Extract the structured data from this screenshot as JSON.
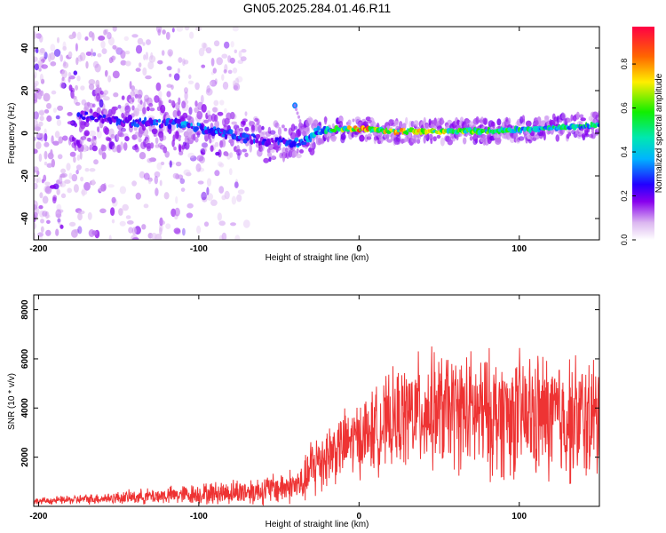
{
  "title": "GN05.2025.284.01.46.R11",
  "chart_data": [
    {
      "type": "heatmap",
      "xlabel": "Height of straight line (km)",
      "ylabel": "Frequency (Hz)",
      "xlim": [
        -203,
        150
      ],
      "ylim": [
        -50,
        50
      ],
      "xticks": [
        -200,
        -100,
        0,
        100
      ],
      "xtick_labels": [
        "-200",
        "-100",
        "0",
        "100"
      ],
      "yticks": [
        -40,
        -20,
        0,
        20,
        40
      ],
      "ytick_labels": [
        "-40",
        "-20",
        "0",
        "20",
        "40"
      ],
      "colorbar_label": "Normalized spectral amplitude",
      "colorbar_range": [
        0,
        0.97
      ],
      "colorbar_ticks": [
        0,
        0.2,
        0.4,
        0.6,
        0.8
      ],
      "colorbar_tick_labels": [
        "0.0",
        "0.2",
        "0.4",
        "0.6",
        "0.8"
      ],
      "ridge": {
        "x": [
          -170,
          -150,
          -130,
          -110,
          -90,
          -70,
          -55,
          -45,
          -35,
          -25,
          -15,
          0,
          20,
          50,
          80,
          110,
          130,
          150
        ],
        "freq_hz": [
          8,
          6,
          5,
          4,
          1,
          -2,
          -4,
          -5,
          -4,
          1,
          2,
          2,
          1,
          1,
          1,
          2,
          3,
          4
        ],
        "amplitude": [
          0.25,
          0.28,
          0.3,
          0.35,
          0.35,
          0.3,
          0.25,
          0.3,
          0.35,
          0.45,
          0.55,
          0.85,
          0.8,
          0.7,
          0.6,
          0.55,
          0.5,
          0.5
        ]
      },
      "artifact_blip": {
        "x": -40,
        "freq_hz": 13
      },
      "noise_region_x": [
        -203,
        -140
      ]
    },
    {
      "type": "line",
      "series": [
        {
          "name": "SNR",
          "color": "#ee3333"
        }
      ],
      "xlabel": "Height of straight line (km)",
      "ylabel": "SNR (10 * v/v)",
      "xlim": [
        -203,
        150
      ],
      "ylim": [
        0,
        8600
      ],
      "xticks": [
        -200,
        -100,
        0,
        100
      ],
      "xtick_labels": [
        "-200",
        "-100",
        "0",
        "100"
      ],
      "yticks": [
        2000,
        4000,
        6000,
        8000
      ],
      "ytick_labels": [
        "2000",
        "4000",
        "6000",
        "8000"
      ],
      "envelope": {
        "x": [
          -203,
          -150,
          -100,
          -60,
          -35,
          -28,
          -20,
          -10,
          0,
          10,
          25,
          40,
          60,
          80,
          100,
          120,
          150
        ],
        "mean": [
          200,
          350,
          500,
          650,
          900,
          1700,
          2100,
          2500,
          2800,
          3100,
          3600,
          3900,
          3900,
          3700,
          3700,
          3600,
          3500
        ],
        "spread": [
          150,
          300,
          500,
          700,
          900,
          1800,
          1600,
          1600,
          1800,
          2000,
          2400,
          2800,
          2800,
          3000,
          3000,
          3100,
          3000
        ]
      }
    }
  ]
}
